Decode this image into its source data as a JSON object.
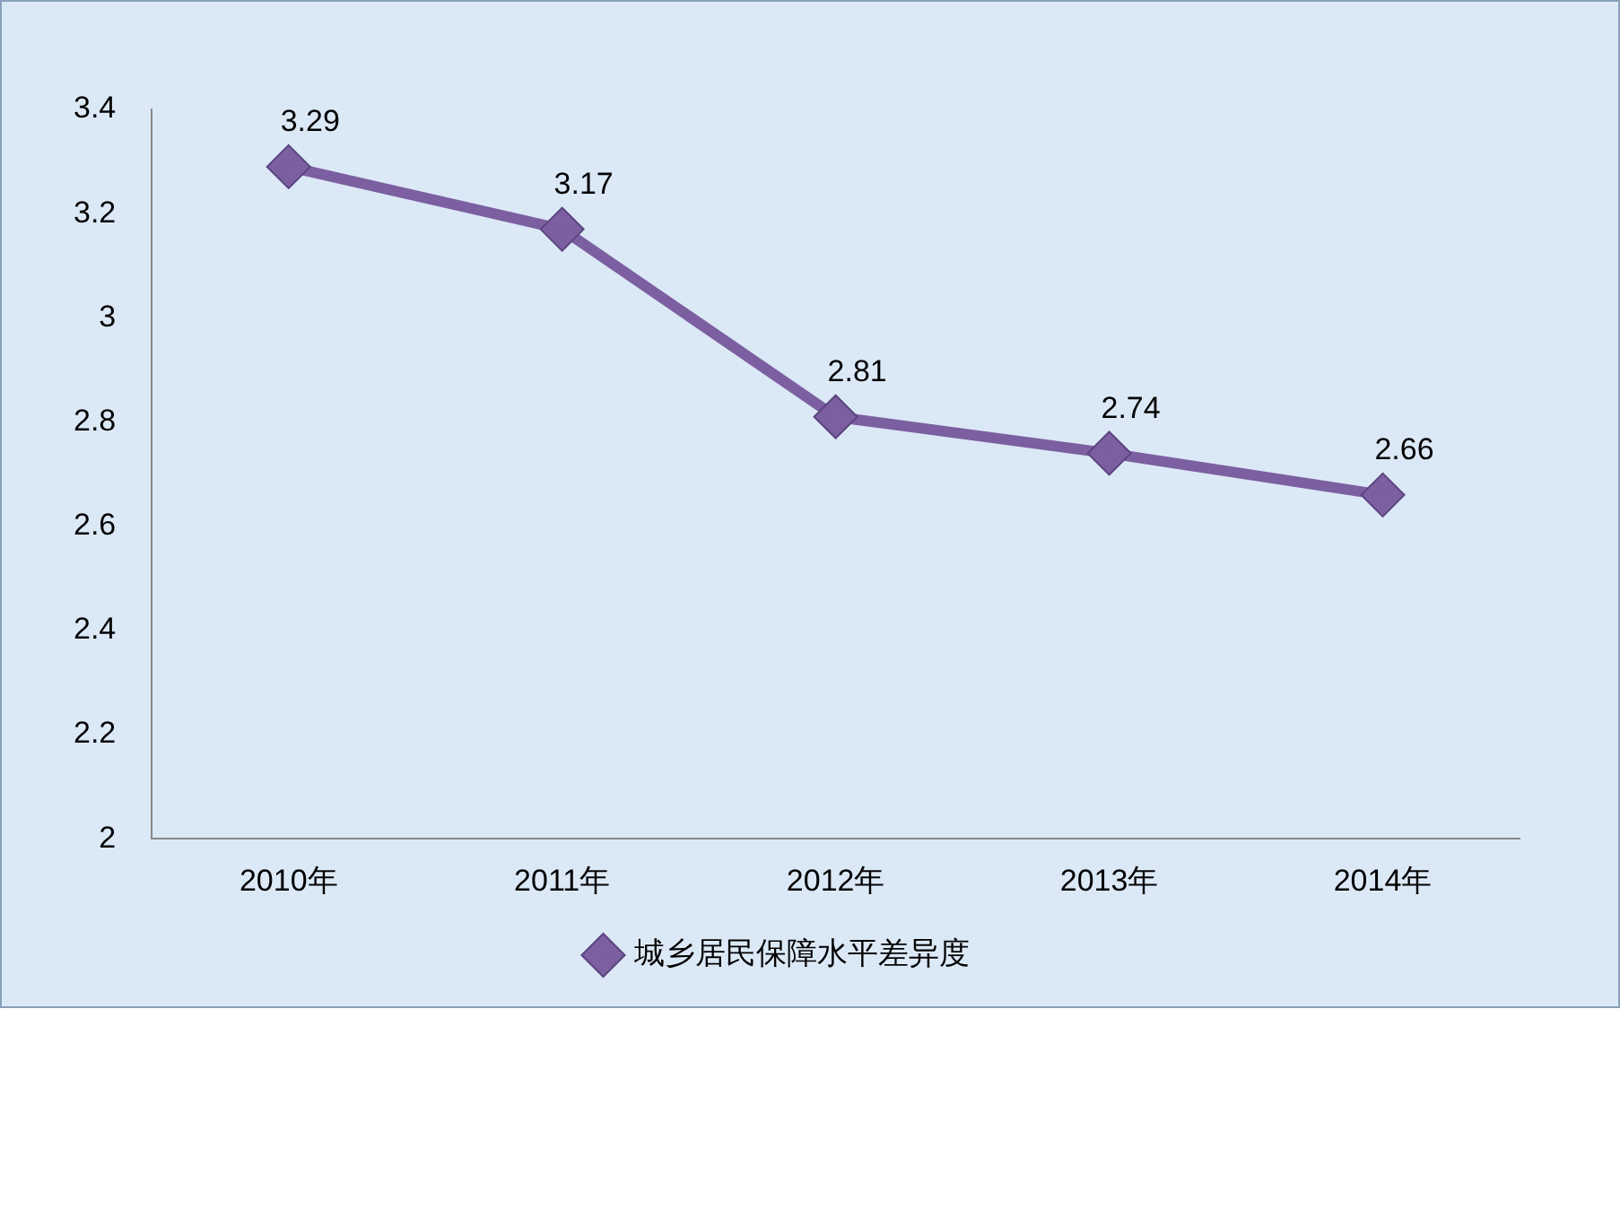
{
  "chart_data": {
    "type": "line",
    "categories": [
      "2010年",
      "2011年",
      "2012年",
      "2013年",
      "2014年"
    ],
    "series": [
      {
        "name": "城乡居民保障水平差异度",
        "color": "#7b5fa0",
        "values": [
          3.29,
          3.17,
          2.81,
          2.74,
          2.66
        ]
      }
    ],
    "ylim": [
      2,
      3.4
    ],
    "yticks": [
      2,
      2.2,
      2.4,
      2.6,
      2.8,
      3,
      3.2,
      3.4
    ],
    "grid": false,
    "legend": "bottom",
    "marker": "diamond",
    "line_style": "solid",
    "data_labels": true
  }
}
